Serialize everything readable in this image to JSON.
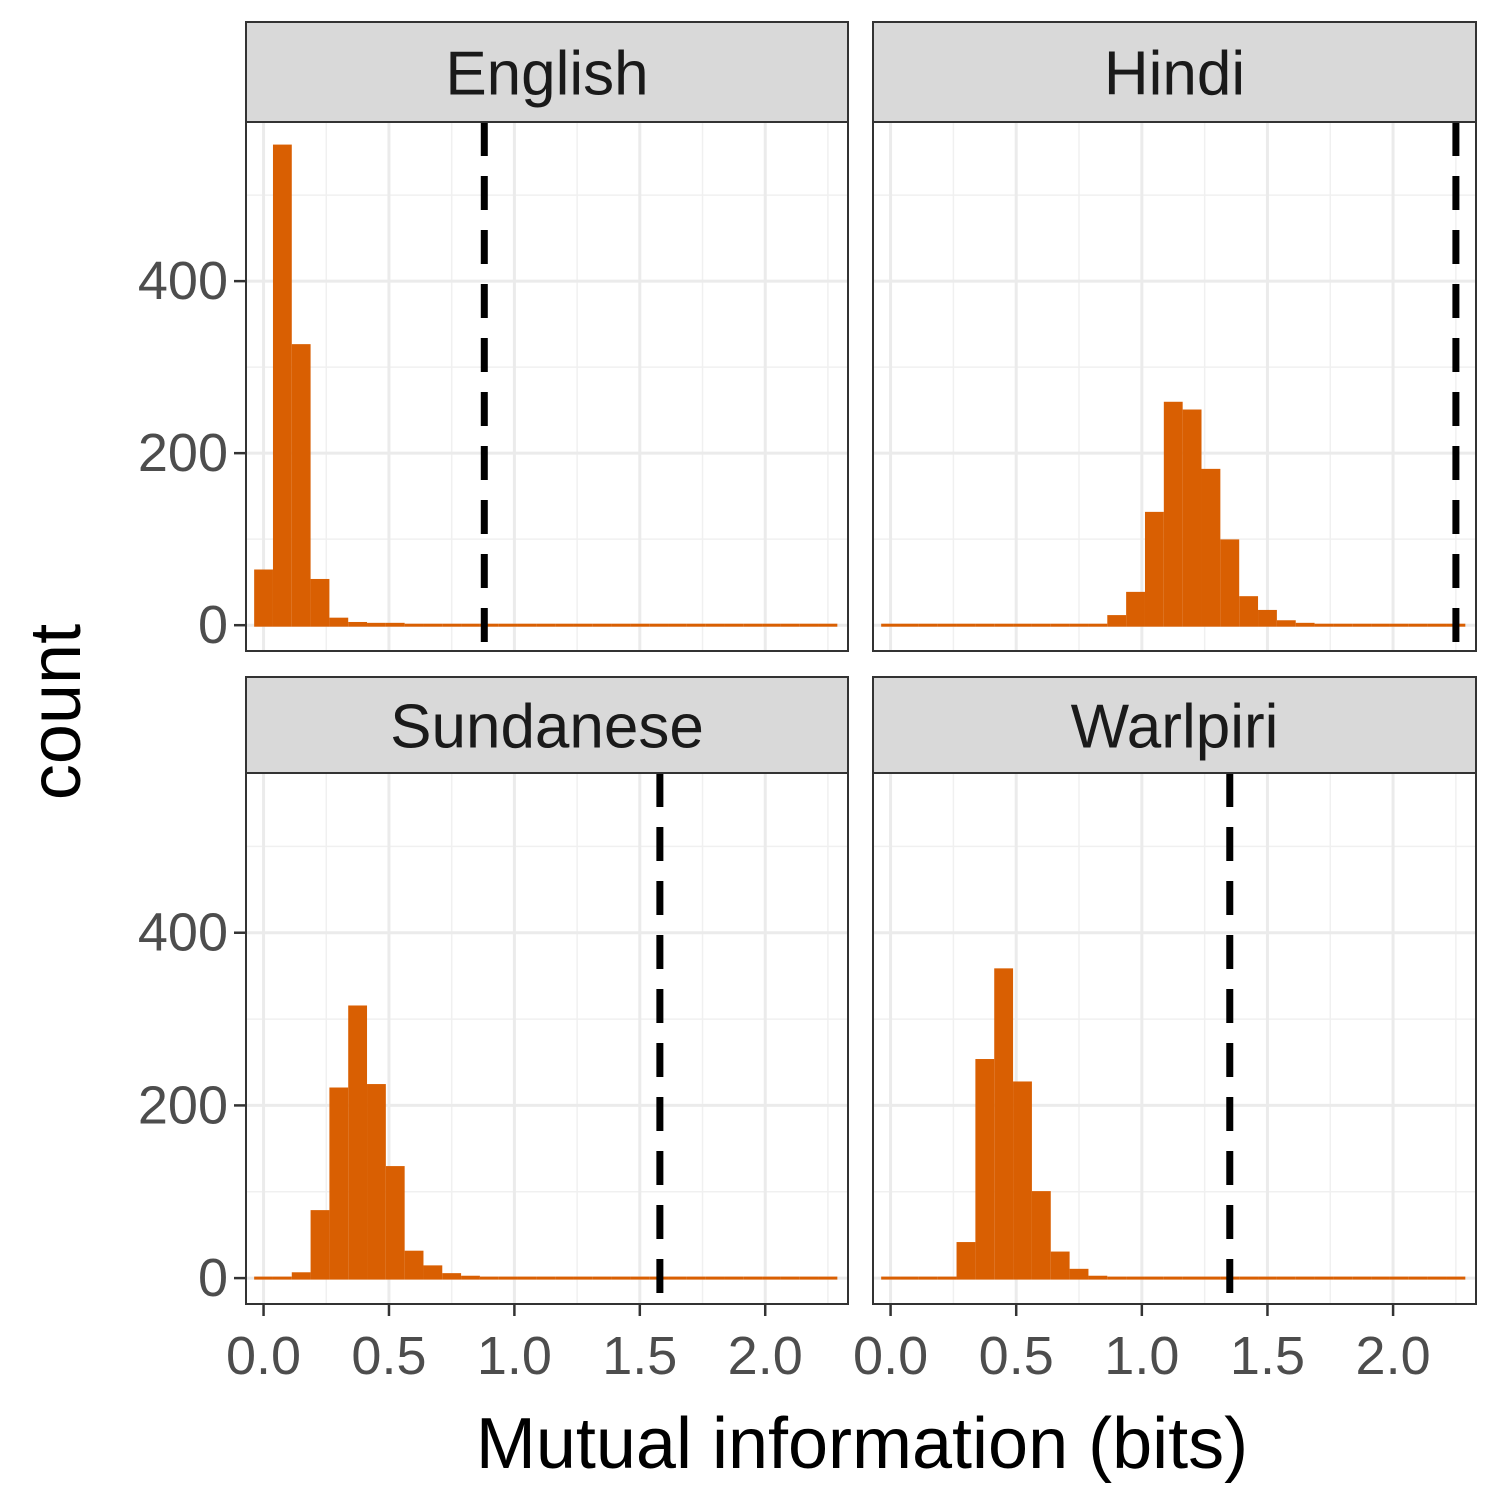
{
  "chart_data": {
    "type": "bar",
    "subtype": "histogram-facets",
    "xlabel": "Mutual information (bits)",
    "ylabel": "count",
    "xlim": [
      -0.07,
      2.33
    ],
    "ylim": [
      -30,
      585
    ],
    "x_ticks": [
      0.0,
      0.5,
      1.0,
      1.5,
      2.0
    ],
    "x_tick_labels": [
      "0.0",
      "0.5",
      "1.0",
      "1.5",
      "2.0"
    ],
    "y_ticks": [
      0,
      200,
      400
    ],
    "y_tick_labels": [
      "0",
      "200",
      "400"
    ],
    "grid": true,
    "bar_color": "#D95F02",
    "vline_color": "#000000",
    "bin_start": -0.0375,
    "bin_width": 0.075,
    "panels": [
      {
        "title": "English",
        "vline": 0.88,
        "counts": [
          63,
          557,
          325,
          52,
          7,
          2,
          1,
          1,
          0,
          0,
          0,
          0,
          0,
          0,
          0,
          0,
          0,
          0,
          0,
          0,
          0,
          0,
          0,
          0,
          0,
          0,
          0,
          0,
          0,
          0,
          0
        ]
      },
      {
        "title": "Hindi",
        "vline": 2.25,
        "counts": [
          0,
          0,
          0,
          0,
          0,
          0,
          0,
          0,
          0,
          0,
          0,
          0,
          10,
          37,
          130,
          258,
          249,
          180,
          98,
          32,
          16,
          4,
          1,
          0,
          0,
          0,
          0,
          0,
          0,
          0,
          0
        ]
      },
      {
        "title": "Sundanese",
        "vline": 1.58,
        "counts": [
          0,
          0,
          5,
          77,
          219,
          314,
          223,
          128,
          30,
          13,
          4,
          1,
          0,
          0,
          0,
          0,
          0,
          0,
          0,
          0,
          0,
          0,
          0,
          0,
          0,
          0,
          0,
          0,
          0,
          0,
          0
        ]
      },
      {
        "title": "Warlpiri",
        "vline": 1.35,
        "counts": [
          0,
          0,
          0,
          0,
          40,
          252,
          357,
          226,
          99,
          29,
          9,
          1,
          0,
          0,
          0,
          0,
          0,
          0,
          0,
          0,
          0,
          0,
          0,
          0,
          0,
          0,
          0,
          0,
          0,
          0,
          0
        ]
      }
    ]
  }
}
